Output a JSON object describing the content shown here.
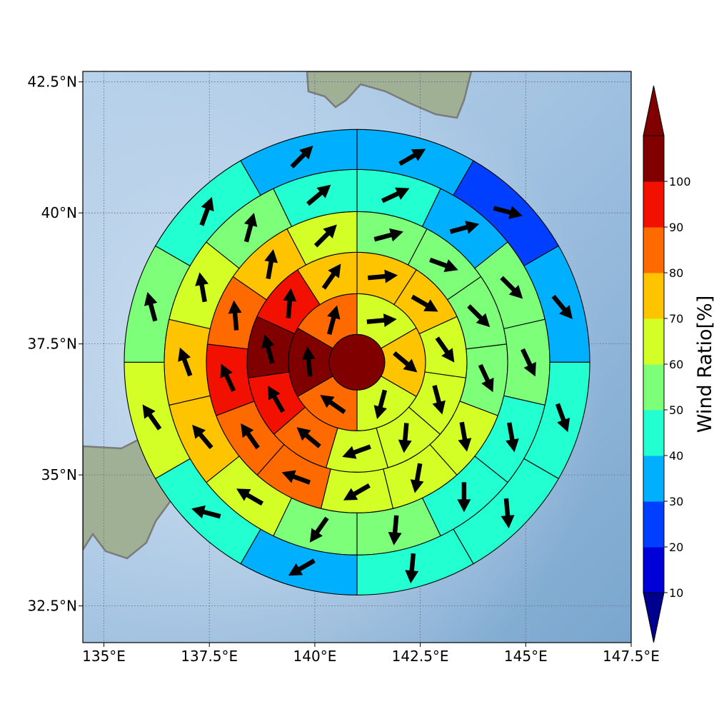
{
  "map": {
    "lon_ticks": [
      {
        "value": 135,
        "label": "135°E"
      },
      {
        "value": 137.5,
        "label": "137.5°E"
      },
      {
        "value": 140,
        "label": "140°E"
      },
      {
        "value": 142.5,
        "label": "142.5°E"
      },
      {
        "value": 145,
        "label": "145°E"
      },
      {
        "value": 147.5,
        "label": "147.5°E"
      }
    ],
    "lat_ticks": [
      {
        "value": 42.5,
        "label": "42.5°N"
      },
      {
        "value": 40,
        "label": "40°N"
      },
      {
        "value": 37.5,
        "label": "37.5°N"
      },
      {
        "value": 35,
        "label": "35°N"
      },
      {
        "value": 32.5,
        "label": "32.5°N"
      }
    ],
    "lon_range": [
      134.5,
      147.5
    ],
    "lat_range": [
      31.8,
      42.7
    ],
    "gridlines": true,
    "basemap": "shaded relief with coastlines (Honshu, Hokkaido)",
    "center": {
      "lon": 141.0,
      "lat": 37.15
    }
  },
  "colorbar": {
    "label": "Wind Ratio[%]",
    "ticks": [
      "10",
      "20",
      "30",
      "40",
      "50",
      "60",
      "70",
      "80",
      "90",
      "100"
    ],
    "colors": [
      "#00008f",
      "#0000d9",
      "#003fff",
      "#00b0ff",
      "#22ffd0",
      "#7dff7a",
      "#d4ff26",
      "#ffc400",
      "#ff6a00",
      "#f21000",
      "#800000"
    ],
    "extend": "both"
  },
  "chart_data": {
    "type": "polar-grid wind ratio map",
    "variable": "Wind Ratio[%]",
    "unit": "%",
    "center_cell": {
      "ratio": 100
    },
    "rings": [
      {
        "ring": 1,
        "cells": [
          {
            "sector": 1,
            "ratio": 65,
            "bearing": 85
          },
          {
            "sector": 2,
            "ratio": 75,
            "bearing": 130
          },
          {
            "sector": 3,
            "ratio": 65,
            "bearing": 195
          },
          {
            "sector": 4,
            "ratio": 85,
            "bearing": 305
          },
          {
            "sector": 5,
            "ratio": 100,
            "bearing": 355
          },
          {
            "sector": 6,
            "ratio": 85,
            "bearing": 15
          }
        ]
      },
      {
        "ring": 2,
        "cells": [
          {
            "sector": 1,
            "ratio": 75,
            "bearing": 85
          },
          {
            "sector": 2,
            "ratio": 75,
            "bearing": 120
          },
          {
            "sector": 3,
            "ratio": 65,
            "bearing": 145
          },
          {
            "sector": 4,
            "ratio": 65,
            "bearing": 165
          },
          {
            "sector": 5,
            "ratio": 65,
            "bearing": 185
          },
          {
            "sector": 6,
            "ratio": 65,
            "bearing": 250
          },
          {
            "sector": 7,
            "ratio": 85,
            "bearing": 310
          },
          {
            "sector": 8,
            "ratio": 95,
            "bearing": 330
          },
          {
            "sector": 9,
            "ratio": 100,
            "bearing": 345
          },
          {
            "sector": 10,
            "ratio": 95,
            "bearing": 5
          },
          {
            "sector": 11,
            "ratio": 75,
            "bearing": 35
          }
        ]
      },
      {
        "ring": 3,
        "cells": [
          {
            "sector": 1,
            "ratio": 55,
            "bearing": 75
          },
          {
            "sector": 2,
            "ratio": 55,
            "bearing": 110
          },
          {
            "sector": 3,
            "ratio": 55,
            "bearing": 135
          },
          {
            "sector": 4,
            "ratio": 55,
            "bearing": 155
          },
          {
            "sector": 5,
            "ratio": 65,
            "bearing": 170
          },
          {
            "sector": 6,
            "ratio": 65,
            "bearing": 190
          },
          {
            "sector": 7,
            "ratio": 65,
            "bearing": 240
          },
          {
            "sector": 8,
            "ratio": 85,
            "bearing": 290
          },
          {
            "sector": 9,
            "ratio": 85,
            "bearing": 325
          },
          {
            "sector": 10,
            "ratio": 95,
            "bearing": 335
          },
          {
            "sector": 11,
            "ratio": 85,
            "bearing": 355
          },
          {
            "sector": 12,
            "ratio": 75,
            "bearing": 10
          },
          {
            "sector": 13,
            "ratio": 65,
            "bearing": 45
          }
        ]
      },
      {
        "ring": 4,
        "cells": [
          {
            "sector": 1,
            "ratio": 45,
            "bearing": 65
          },
          {
            "sector": 2,
            "ratio": 35,
            "bearing": 75
          },
          {
            "sector": 3,
            "ratio": 55,
            "bearing": 135
          },
          {
            "sector": 4,
            "ratio": 55,
            "bearing": 155
          },
          {
            "sector": 5,
            "ratio": 45,
            "bearing": 170
          },
          {
            "sector": 6,
            "ratio": 45,
            "bearing": 180
          },
          {
            "sector": 7,
            "ratio": 55,
            "bearing": 185
          },
          {
            "sector": 8,
            "ratio": 55,
            "bearing": 215
          },
          {
            "sector": 9,
            "ratio": 65,
            "bearing": 300
          },
          {
            "sector": 10,
            "ratio": 75,
            "bearing": 320
          },
          {
            "sector": 11,
            "ratio": 75,
            "bearing": 340
          },
          {
            "sector": 12,
            "ratio": 65,
            "bearing": 350
          },
          {
            "sector": 13,
            "ratio": 55,
            "bearing": 15
          },
          {
            "sector": 14,
            "ratio": 45,
            "bearing": 50
          }
        ]
      },
      {
        "ring": 5,
        "cells": [
          {
            "sector": 1,
            "ratio": 35,
            "bearing": 60
          },
          {
            "sector": 2,
            "ratio": 25,
            "bearing": 105
          },
          {
            "sector": 3,
            "ratio": 35,
            "bearing": 140
          },
          {
            "sector": 4,
            "ratio": 45,
            "bearing": 160
          },
          {
            "sector": 5,
            "ratio": 45,
            "bearing": 175
          },
          {
            "sector": 6,
            "ratio": 45,
            "bearing": 185
          },
          {
            "sector": 7,
            "ratio": 35,
            "bearing": 240
          },
          {
            "sector": 8,
            "ratio": 45,
            "bearing": 285
          },
          {
            "sector": 9,
            "ratio": 65,
            "bearing": 325
          },
          {
            "sector": 10,
            "ratio": 55,
            "bearing": 345
          },
          {
            "sector": 11,
            "ratio": 45,
            "bearing": 20
          },
          {
            "sector": 12,
            "ratio": 35,
            "bearing": 45
          }
        ]
      },
      {
        "ring": 6,
        "cells": [
          {
            "sector": 1,
            "ratio": 25,
            "bearing": 55
          },
          {
            "sector": 2,
            "ratio": 15,
            "bearing": 110
          },
          {
            "sector": 3,
            "ratio": 25,
            "bearing": 140
          },
          {
            "sector": 4,
            "ratio": 45,
            "bearing": 165
          },
          {
            "sector": 5,
            "ratio": 45,
            "bearing": 180
          },
          {
            "sector": 6,
            "ratio": 35,
            "bearing": 215
          },
          {
            "sector": 7,
            "ratio": 45,
            "bearing": 270
          },
          {
            "sector": 8,
            "ratio": 55,
            "bearing": 300
          },
          {
            "sector": 9,
            "ratio": 55,
            "bearing": 345
          },
          {
            "sector": 10,
            "ratio": 45,
            "bearing": 15
          },
          {
            "sector": 11,
            "ratio": 35,
            "bearing": 40
          }
        ]
      }
    ]
  }
}
